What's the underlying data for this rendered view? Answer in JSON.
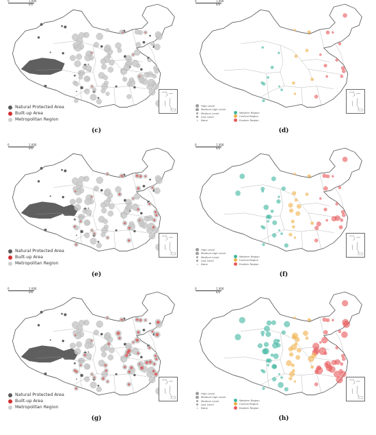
{
  "scale": {
    "zero": "0",
    "distance": "1,000 km"
  },
  "panels": [
    {
      "id": "c",
      "caption": "(c)",
      "type": "land_use",
      "intensity": 0.15
    },
    {
      "id": "d",
      "caption": "(d)",
      "type": "level",
      "intensity": 0.35
    },
    {
      "id": "e",
      "caption": "(e)",
      "type": "land_use",
      "intensity": 0.45
    },
    {
      "id": "f",
      "caption": "(f)",
      "type": "level",
      "intensity": 0.65
    },
    {
      "id": "g",
      "caption": "(g)",
      "type": "land_use",
      "intensity": 0.8
    },
    {
      "id": "h",
      "caption": "(h)",
      "type": "level",
      "intensity": 1.0
    }
  ],
  "legend_land_use": [
    {
      "label": "Natural Protected Area",
      "color": "#5a5a5a"
    },
    {
      "label": "Built-up Area",
      "color": "#d32f2f"
    },
    {
      "label": "Metropolitan Region",
      "color": "#cfcfcf"
    }
  ],
  "legend_level": {
    "sizes": [
      "High Level",
      "Medium-high Level",
      "Medium Level",
      "Low Level",
      "None"
    ],
    "regions": [
      {
        "label": "Western Region",
        "color": "#3fb6a0"
      },
      {
        "label": "Central Region",
        "color": "#f0b04a"
      },
      {
        "label": "Eastern Region",
        "color": "#e8585a"
      }
    ]
  },
  "colors": {
    "land": "#ffffff",
    "border": "#555555",
    "province": "#9a9a9a",
    "protected": "#5f5f5f",
    "metro": "#c9c9c9",
    "builtup": "#d94c4c"
  }
}
